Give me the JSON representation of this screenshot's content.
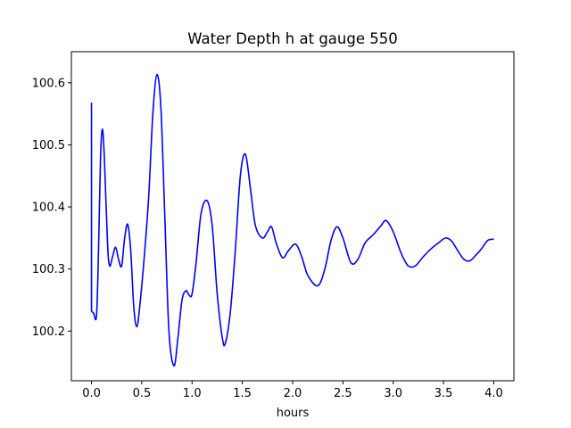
{
  "chart_data": {
    "type": "line",
    "title": "Water Depth h at gauge 550",
    "xlabel": "hours",
    "ylabel": "",
    "xlim": [
      -0.2,
      4.2
    ],
    "ylim": [
      100.12,
      100.65
    ],
    "xticks": [
      0.0,
      0.5,
      1.0,
      1.5,
      2.0,
      2.5,
      3.0,
      3.5,
      4.0
    ],
    "xtick_labels": [
      "0.0",
      "0.5",
      "1.0",
      "1.5",
      "2.0",
      "2.5",
      "3.0",
      "3.5",
      "4.0"
    ],
    "yticks": [
      100.2,
      100.3,
      100.4,
      100.5,
      100.6
    ],
    "ytick_labels": [
      "100.2",
      "100.3",
      "100.4",
      "100.5",
      "100.6"
    ],
    "grid": false,
    "series": [
      {
        "color": "#0000ff",
        "points": [
          [
            0.0,
            100.568
          ],
          [
            0.0,
            100.232
          ],
          [
            0.02,
            100.229
          ],
          [
            0.05,
            100.225
          ],
          [
            0.07,
            100.33
          ],
          [
            0.09,
            100.48
          ],
          [
            0.11,
            100.525
          ],
          [
            0.13,
            100.47
          ],
          [
            0.16,
            100.34
          ],
          [
            0.18,
            100.305
          ],
          [
            0.21,
            100.32
          ],
          [
            0.24,
            100.335
          ],
          [
            0.27,
            100.315
          ],
          [
            0.3,
            100.305
          ],
          [
            0.33,
            100.35
          ],
          [
            0.36,
            100.372
          ],
          [
            0.39,
            100.33
          ],
          [
            0.42,
            100.24
          ],
          [
            0.45,
            100.207
          ],
          [
            0.48,
            100.24
          ],
          [
            0.53,
            100.33
          ],
          [
            0.57,
            100.42
          ],
          [
            0.61,
            100.55
          ],
          [
            0.65,
            100.613
          ],
          [
            0.69,
            100.56
          ],
          [
            0.73,
            100.38
          ],
          [
            0.77,
            100.2
          ],
          [
            0.82,
            100.144
          ],
          [
            0.86,
            100.19
          ],
          [
            0.9,
            100.25
          ],
          [
            0.94,
            100.265
          ],
          [
            0.97,
            100.258
          ],
          [
            1.0,
            100.26
          ],
          [
            1.04,
            100.31
          ],
          [
            1.09,
            100.39
          ],
          [
            1.15,
            100.41
          ],
          [
            1.2,
            100.37
          ],
          [
            1.25,
            100.26
          ],
          [
            1.3,
            100.19
          ],
          [
            1.33,
            100.18
          ],
          [
            1.38,
            100.23
          ],
          [
            1.43,
            100.33
          ],
          [
            1.48,
            100.45
          ],
          [
            1.53,
            100.485
          ],
          [
            1.58,
            100.43
          ],
          [
            1.63,
            100.37
          ],
          [
            1.7,
            100.35
          ],
          [
            1.75,
            100.36
          ],
          [
            1.79,
            100.368
          ],
          [
            1.84,
            100.34
          ],
          [
            1.9,
            100.318
          ],
          [
            1.96,
            100.33
          ],
          [
            2.03,
            100.34
          ],
          [
            2.09,
            100.32
          ],
          [
            2.15,
            100.29
          ],
          [
            2.25,
            100.273
          ],
          [
            2.32,
            100.3
          ],
          [
            2.38,
            100.345
          ],
          [
            2.44,
            100.368
          ],
          [
            2.5,
            100.35
          ],
          [
            2.58,
            100.31
          ],
          [
            2.65,
            100.316
          ],
          [
            2.72,
            100.342
          ],
          [
            2.8,
            100.355
          ],
          [
            2.88,
            100.37
          ],
          [
            2.93,
            100.378
          ],
          [
            3.0,
            100.36
          ],
          [
            3.08,
            100.325
          ],
          [
            3.15,
            100.305
          ],
          [
            3.22,
            100.305
          ],
          [
            3.3,
            100.32
          ],
          [
            3.38,
            100.333
          ],
          [
            3.45,
            100.342
          ],
          [
            3.52,
            100.35
          ],
          [
            3.58,
            100.345
          ],
          [
            3.64,
            100.33
          ],
          [
            3.7,
            100.316
          ],
          [
            3.76,
            100.313
          ],
          [
            3.82,
            100.322
          ],
          [
            3.88,
            100.333
          ],
          [
            3.94,
            100.346
          ],
          [
            4.0,
            100.348
          ]
        ]
      }
    ]
  }
}
